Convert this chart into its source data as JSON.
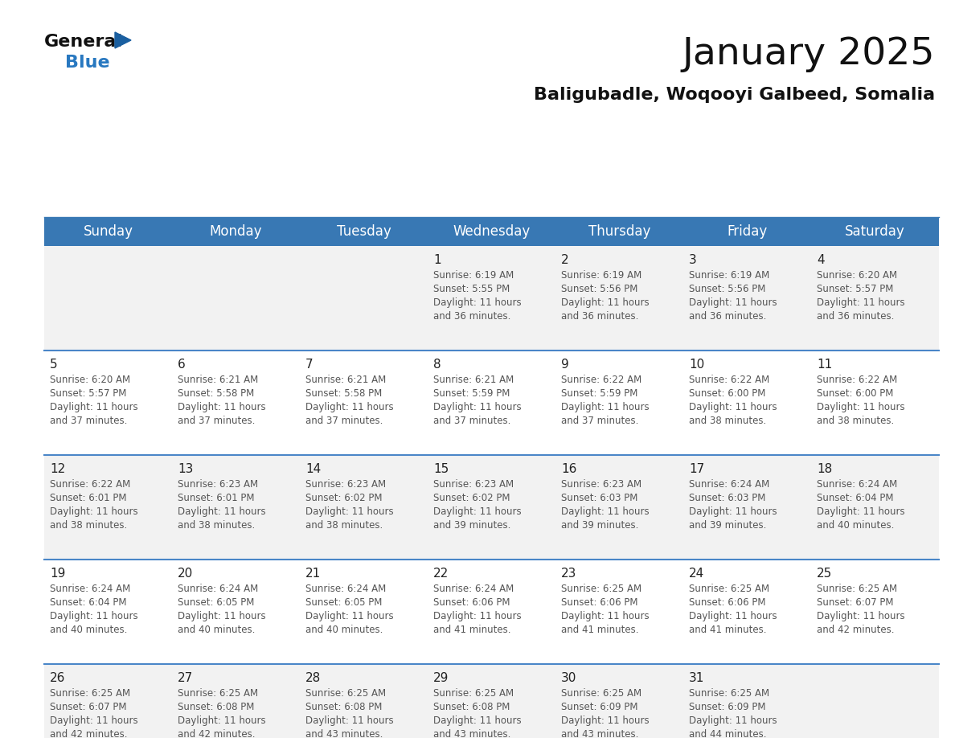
{
  "title": "January 2025",
  "subtitle": "Baligubadle, Woqooyi Galbeed, Somalia",
  "header_bg_color": "#3878b4",
  "header_text_color": "#ffffff",
  "day_names": [
    "Sunday",
    "Monday",
    "Tuesday",
    "Wednesday",
    "Thursday",
    "Friday",
    "Saturday"
  ],
  "row_colors": [
    "#f2f2f2",
    "#ffffff"
  ],
  "divider_color": "#4a86c8",
  "text_color": "#555555",
  "day_num_color": "#222222",
  "calendar": [
    [
      null,
      null,
      null,
      {
        "day": "1",
        "sunrise": "6:19 AM",
        "sunset": "5:55 PM",
        "dl1": "Daylight: 11 hours",
        "dl2": "and 36 minutes."
      },
      {
        "day": "2",
        "sunrise": "6:19 AM",
        "sunset": "5:56 PM",
        "dl1": "Daylight: 11 hours",
        "dl2": "and 36 minutes."
      },
      {
        "day": "3",
        "sunrise": "6:19 AM",
        "sunset": "5:56 PM",
        "dl1": "Daylight: 11 hours",
        "dl2": "and 36 minutes."
      },
      {
        "day": "4",
        "sunrise": "6:20 AM",
        "sunset": "5:57 PM",
        "dl1": "Daylight: 11 hours",
        "dl2": "and 36 minutes."
      }
    ],
    [
      {
        "day": "5",
        "sunrise": "6:20 AM",
        "sunset": "5:57 PM",
        "dl1": "Daylight: 11 hours",
        "dl2": "and 37 minutes."
      },
      {
        "day": "6",
        "sunrise": "6:21 AM",
        "sunset": "5:58 PM",
        "dl1": "Daylight: 11 hours",
        "dl2": "and 37 minutes."
      },
      {
        "day": "7",
        "sunrise": "6:21 AM",
        "sunset": "5:58 PM",
        "dl1": "Daylight: 11 hours",
        "dl2": "and 37 minutes."
      },
      {
        "day": "8",
        "sunrise": "6:21 AM",
        "sunset": "5:59 PM",
        "dl1": "Daylight: 11 hours",
        "dl2": "and 37 minutes."
      },
      {
        "day": "9",
        "sunrise": "6:22 AM",
        "sunset": "5:59 PM",
        "dl1": "Daylight: 11 hours",
        "dl2": "and 37 minutes."
      },
      {
        "day": "10",
        "sunrise": "6:22 AM",
        "sunset": "6:00 PM",
        "dl1": "Daylight: 11 hours",
        "dl2": "and 38 minutes."
      },
      {
        "day": "11",
        "sunrise": "6:22 AM",
        "sunset": "6:00 PM",
        "dl1": "Daylight: 11 hours",
        "dl2": "and 38 minutes."
      }
    ],
    [
      {
        "day": "12",
        "sunrise": "6:22 AM",
        "sunset": "6:01 PM",
        "dl1": "Daylight: 11 hours",
        "dl2": "and 38 minutes."
      },
      {
        "day": "13",
        "sunrise": "6:23 AM",
        "sunset": "6:01 PM",
        "dl1": "Daylight: 11 hours",
        "dl2": "and 38 minutes."
      },
      {
        "day": "14",
        "sunrise": "6:23 AM",
        "sunset": "6:02 PM",
        "dl1": "Daylight: 11 hours",
        "dl2": "and 38 minutes."
      },
      {
        "day": "15",
        "sunrise": "6:23 AM",
        "sunset": "6:02 PM",
        "dl1": "Daylight: 11 hours",
        "dl2": "and 39 minutes."
      },
      {
        "day": "16",
        "sunrise": "6:23 AM",
        "sunset": "6:03 PM",
        "dl1": "Daylight: 11 hours",
        "dl2": "and 39 minutes."
      },
      {
        "day": "17",
        "sunrise": "6:24 AM",
        "sunset": "6:03 PM",
        "dl1": "Daylight: 11 hours",
        "dl2": "and 39 minutes."
      },
      {
        "day": "18",
        "sunrise": "6:24 AM",
        "sunset": "6:04 PM",
        "dl1": "Daylight: 11 hours",
        "dl2": "and 40 minutes."
      }
    ],
    [
      {
        "day": "19",
        "sunrise": "6:24 AM",
        "sunset": "6:04 PM",
        "dl1": "Daylight: 11 hours",
        "dl2": "and 40 minutes."
      },
      {
        "day": "20",
        "sunrise": "6:24 AM",
        "sunset": "6:05 PM",
        "dl1": "Daylight: 11 hours",
        "dl2": "and 40 minutes."
      },
      {
        "day": "21",
        "sunrise": "6:24 AM",
        "sunset": "6:05 PM",
        "dl1": "Daylight: 11 hours",
        "dl2": "and 40 minutes."
      },
      {
        "day": "22",
        "sunrise": "6:24 AM",
        "sunset": "6:06 PM",
        "dl1": "Daylight: 11 hours",
        "dl2": "and 41 minutes."
      },
      {
        "day": "23",
        "sunrise": "6:25 AM",
        "sunset": "6:06 PM",
        "dl1": "Daylight: 11 hours",
        "dl2": "and 41 minutes."
      },
      {
        "day": "24",
        "sunrise": "6:25 AM",
        "sunset": "6:06 PM",
        "dl1": "Daylight: 11 hours",
        "dl2": "and 41 minutes."
      },
      {
        "day": "25",
        "sunrise": "6:25 AM",
        "sunset": "6:07 PM",
        "dl1": "Daylight: 11 hours",
        "dl2": "and 42 minutes."
      }
    ],
    [
      {
        "day": "26",
        "sunrise": "6:25 AM",
        "sunset": "6:07 PM",
        "dl1": "Daylight: 11 hours",
        "dl2": "and 42 minutes."
      },
      {
        "day": "27",
        "sunrise": "6:25 AM",
        "sunset": "6:08 PM",
        "dl1": "Daylight: 11 hours",
        "dl2": "and 42 minutes."
      },
      {
        "day": "28",
        "sunrise": "6:25 AM",
        "sunset": "6:08 PM",
        "dl1": "Daylight: 11 hours",
        "dl2": "and 43 minutes."
      },
      {
        "day": "29",
        "sunrise": "6:25 AM",
        "sunset": "6:08 PM",
        "dl1": "Daylight: 11 hours",
        "dl2": "and 43 minutes."
      },
      {
        "day": "30",
        "sunrise": "6:25 AM",
        "sunset": "6:09 PM",
        "dl1": "Daylight: 11 hours",
        "dl2": "and 43 minutes."
      },
      {
        "day": "31",
        "sunrise": "6:25 AM",
        "sunset": "6:09 PM",
        "dl1": "Daylight: 11 hours",
        "dl2": "and 44 minutes."
      },
      null
    ]
  ],
  "logo_general_color": "#111111",
  "logo_blue_color": "#2878c0",
  "logo_triangle_color": "#1a5fa0",
  "fig_width": 11.88,
  "fig_height": 9.18,
  "dpi": 100
}
